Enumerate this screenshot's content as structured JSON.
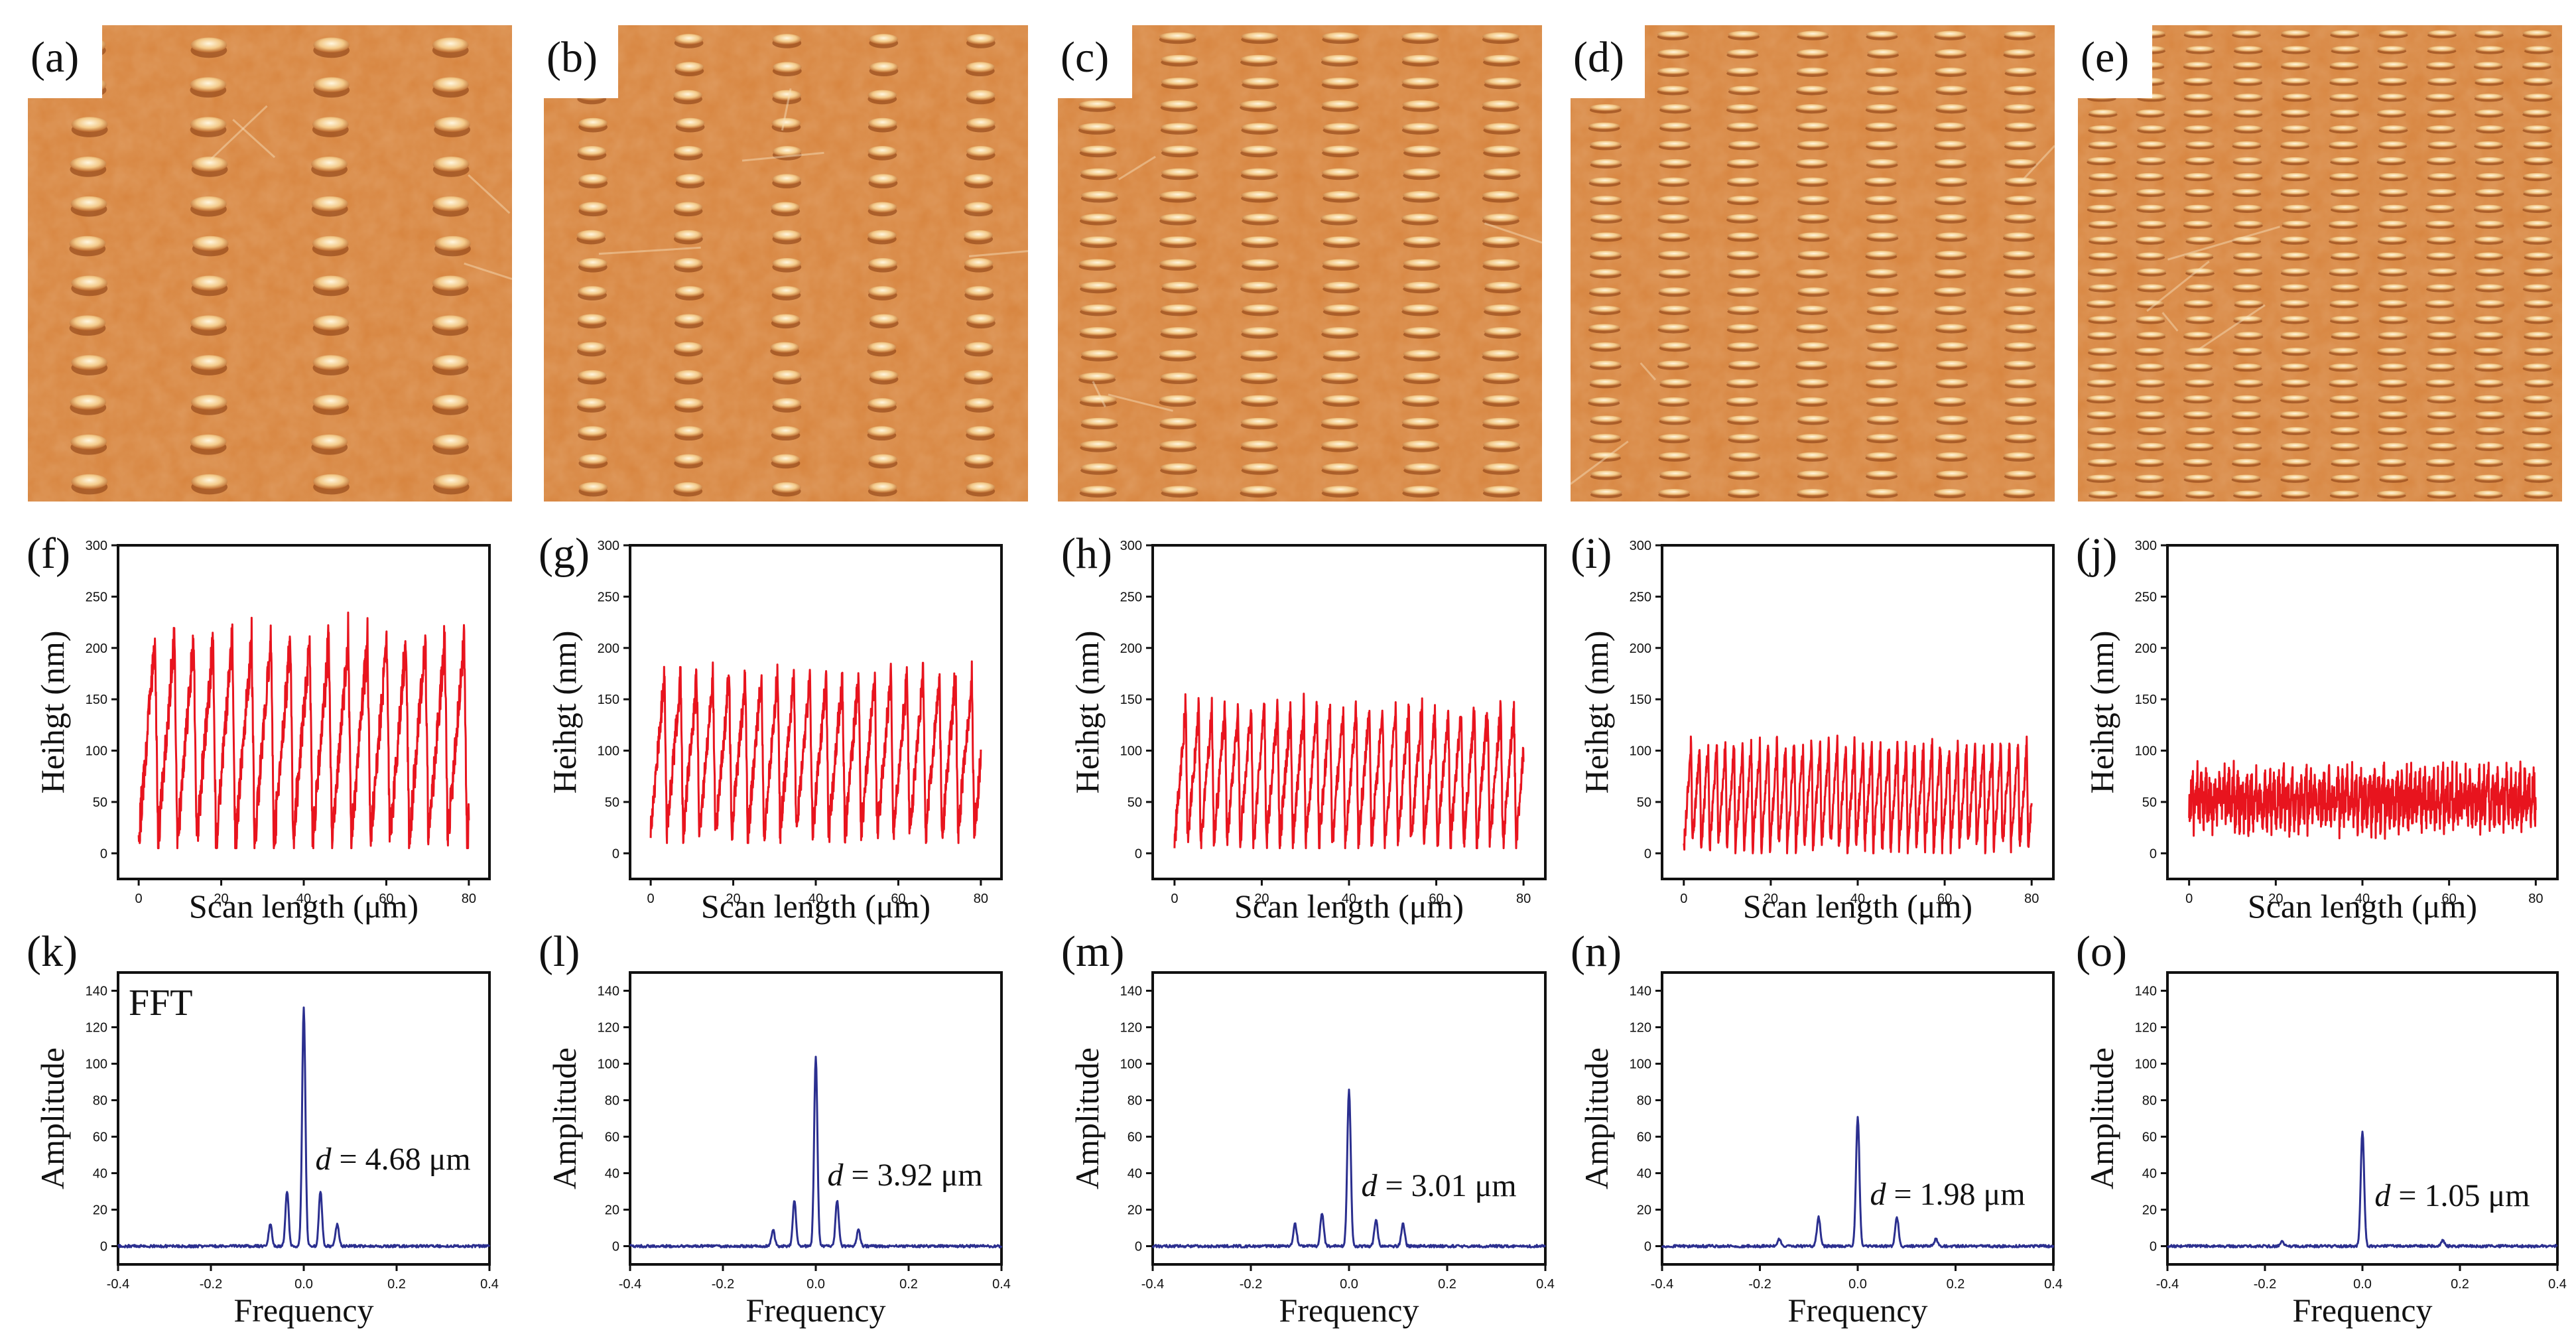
{
  "afm_panels": [
    {
      "label": "(a)",
      "stripe_columns": 4,
      "period_um": 4.68
    },
    {
      "label": "(b)",
      "stripe_columns": 5,
      "period_um": 3.92
    },
    {
      "label": "(c)",
      "stripe_columns": 6,
      "period_um": 3.01
    },
    {
      "label": "(d)",
      "stripe_columns": 7,
      "period_um": 1.98
    },
    {
      "label": "(e)",
      "stripe_columns": 10,
      "period_um": 1.05
    }
  ],
  "colors": {
    "afm_base": "#d7843e",
    "afm_light": "#f6e0b8",
    "afm_dark": "#8a3f14",
    "height_line": "#e8141e",
    "fft_line": "#2b2f8f",
    "frame": "#111111"
  },
  "chart_data": [
    {
      "type": "line",
      "label": "(f)",
      "xlabel": "Scan length (μm)",
      "ylabel": "Heihgt (nm)",
      "xlim": [
        -5,
        85
      ],
      "ylim": [
        -25,
        300
      ],
      "xticks": [
        0,
        20,
        40,
        60,
        80
      ],
      "yticks": [
        0,
        50,
        100,
        150,
        200,
        250,
        300
      ],
      "series": [
        {
          "period_um": 4.68,
          "x_range": [
            0,
            80
          ],
          "y_min": 5,
          "y_max": 265,
          "mean": 110
        }
      ]
    },
    {
      "type": "line",
      "label": "(g)",
      "xlabel": "Scan length (μm)",
      "ylabel": "Heihgt (nm)",
      "xlim": [
        -5,
        85
      ],
      "ylim": [
        -25,
        300
      ],
      "xticks": [
        0,
        20,
        40,
        60,
        80
      ],
      "yticks": [
        0,
        50,
        100,
        150,
        200,
        250,
        300
      ],
      "series": [
        {
          "period_um": 3.92,
          "x_range": [
            0,
            80
          ],
          "y_min": 10,
          "y_max": 215,
          "mean": 95
        }
      ]
    },
    {
      "type": "line",
      "label": "(h)",
      "xlabel": "Scan length (μm)",
      "ylabel": "Heihgt (nm)",
      "xlim": [
        -5,
        85
      ],
      "ylim": [
        -25,
        300
      ],
      "xticks": [
        0,
        20,
        40,
        60,
        80
      ],
      "yticks": [
        0,
        50,
        100,
        150,
        200,
        250,
        300
      ],
      "series": [
        {
          "period_um": 3.01,
          "x_range": [
            0,
            80
          ],
          "y_min": 5,
          "y_max": 180,
          "mean": 75
        }
      ]
    },
    {
      "type": "line",
      "label": "(i)",
      "xlabel": "Scan length (μm)",
      "ylabel": "Heihgt (nm)",
      "xlim": [
        -5,
        85
      ],
      "ylim": [
        -25,
        300
      ],
      "xticks": [
        0,
        20,
        40,
        60,
        80
      ],
      "yticks": [
        0,
        50,
        100,
        150,
        200,
        250,
        300
      ],
      "series": [
        {
          "period_um": 1.98,
          "x_range": [
            0,
            80
          ],
          "y_min": 0,
          "y_max": 135,
          "mean": 55
        }
      ]
    },
    {
      "type": "line",
      "label": "(j)",
      "xlabel": "Scan length (μm)",
      "ylabel": "Heihgt (nm)",
      "xlim": [
        -5,
        85
      ],
      "ylim": [
        -25,
        300
      ],
      "xticks": [
        0,
        20,
        40,
        60,
        80
      ],
      "yticks": [
        0,
        50,
        100,
        150,
        200,
        250,
        300
      ],
      "series": [
        {
          "period_um": 1.05,
          "x_range": [
            0,
            80
          ],
          "y_min": 5,
          "y_max": 95,
          "mean": 52
        }
      ]
    },
    {
      "type": "line",
      "label": "(k)",
      "tag": "FFT",
      "xlabel": "Frequency",
      "ylabel": "Amplitude",
      "xlim": [
        -0.4,
        0.4
      ],
      "ylim": [
        -10,
        150
      ],
      "xticks": [
        -0.4,
        -0.2,
        0.0,
        0.2,
        0.4
      ],
      "yticks": [
        0,
        20,
        40,
        60,
        80,
        100,
        120,
        140
      ],
      "annotation": "d = 4.68 μm",
      "peaks": [
        {
          "f": 0.0,
          "amp": 131
        },
        {
          "f": -0.036,
          "amp": 30
        },
        {
          "f": 0.036,
          "amp": 30
        },
        {
          "f": -0.072,
          "amp": 12
        },
        {
          "f": 0.072,
          "amp": 12
        }
      ]
    },
    {
      "type": "line",
      "label": "(l)",
      "tag": "",
      "xlabel": "Frequency",
      "ylabel": "Amplitude",
      "xlim": [
        -0.4,
        0.4
      ],
      "ylim": [
        -10,
        150
      ],
      "xticks": [
        -0.4,
        -0.2,
        0.0,
        0.2,
        0.4
      ],
      "yticks": [
        0,
        20,
        40,
        60,
        80,
        100,
        120,
        140
      ],
      "annotation": "d = 3.92 μm",
      "peaks": [
        {
          "f": 0.0,
          "amp": 104
        },
        {
          "f": -0.046,
          "amp": 25
        },
        {
          "f": 0.046,
          "amp": 25
        },
        {
          "f": -0.092,
          "amp": 9
        },
        {
          "f": 0.092,
          "amp": 9
        }
      ]
    },
    {
      "type": "line",
      "label": "(m)",
      "tag": "",
      "xlabel": "Frequency",
      "ylabel": "Amplitude",
      "xlim": [
        -0.4,
        0.4
      ],
      "ylim": [
        -10,
        150
      ],
      "xticks": [
        -0.4,
        -0.2,
        0.0,
        0.2,
        0.4
      ],
      "yticks": [
        0,
        20,
        40,
        60,
        80,
        100,
        120,
        140
      ],
      "annotation": "d = 3.01 μm",
      "peaks": [
        {
          "f": 0.0,
          "amp": 86
        },
        {
          "f": -0.055,
          "amp": 18
        },
        {
          "f": 0.055,
          "amp": 14
        },
        {
          "f": -0.11,
          "amp": 12
        },
        {
          "f": 0.11,
          "amp": 12
        }
      ]
    },
    {
      "type": "line",
      "label": "(n)",
      "tag": "",
      "xlabel": "Frequency",
      "ylabel": "Amplitude",
      "xlim": [
        -0.4,
        0.4
      ],
      "ylim": [
        -10,
        150
      ],
      "xticks": [
        -0.4,
        -0.2,
        0.0,
        0.2,
        0.4
      ],
      "yticks": [
        0,
        20,
        40,
        60,
        80,
        100,
        120,
        140
      ],
      "annotation": "d = 1.98 μm",
      "peaks": [
        {
          "f": 0.0,
          "amp": 71
        },
        {
          "f": -0.08,
          "amp": 16
        },
        {
          "f": 0.08,
          "amp": 16
        },
        {
          "f": -0.16,
          "amp": 4
        },
        {
          "f": 0.16,
          "amp": 4
        }
      ]
    },
    {
      "type": "line",
      "label": "(o)",
      "tag": "",
      "xlabel": "Frequency",
      "ylabel": "Amplitude",
      "xlim": [
        -0.4,
        0.4
      ],
      "ylim": [
        -10,
        150
      ],
      "xticks": [
        -0.4,
        -0.2,
        0.0,
        0.2,
        0.4
      ],
      "yticks": [
        0,
        20,
        40,
        60,
        80,
        100,
        120,
        140
      ],
      "annotation": "d = 1.05 μm",
      "peaks": [
        {
          "f": 0.0,
          "amp": 63
        },
        {
          "f": -0.165,
          "amp": 3
        },
        {
          "f": 0.165,
          "amp": 3
        }
      ]
    }
  ]
}
